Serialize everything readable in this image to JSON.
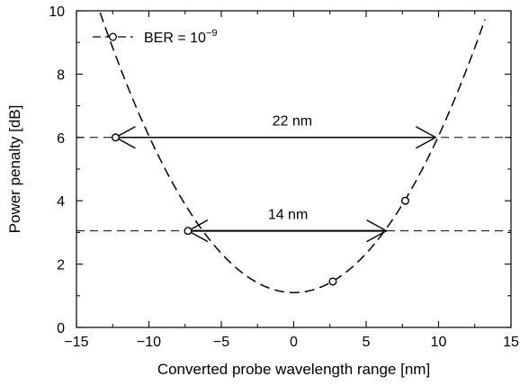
{
  "chart_data": {
    "type": "line",
    "title": "",
    "xlabel": "Converted probe wavelength range [nm]",
    "ylabel": "Power penalty [dB]",
    "xlim": [
      -15,
      15
    ],
    "ylim": [
      0,
      10
    ],
    "x_ticks": [
      -15,
      -10,
      -5,
      0,
      5,
      10,
      15
    ],
    "x_tick_labels": [
      "−15",
      "−10",
      "−5",
      "0",
      "5",
      "10",
      "15"
    ],
    "y_ticks": [
      0,
      2,
      4,
      6,
      8,
      10
    ],
    "y_tick_labels": [
      "0",
      "2",
      "4",
      "6",
      "8",
      "10"
    ],
    "grid": false,
    "legend": {
      "position": "top-left",
      "label_prefix": "BER = 10",
      "label_exponent": "−9"
    },
    "series": [
      {
        "name": "BER = 10−9",
        "style": "dashed-line-with-open-circles",
        "color": "#000000",
        "points": [
          {
            "x": -12.3,
            "y": 6.0
          },
          {
            "x": -7.3,
            "y": 3.05
          },
          {
            "x": 2.7,
            "y": 1.45
          },
          {
            "x": 7.7,
            "y": 4.0
          }
        ],
        "fit_curve": {
          "form": "quadratic",
          "vertex_x": 0.0,
          "vertex_y": 1.1,
          "coefficient": 0.0495,
          "x_range": [
            -15,
            13.2
          ]
        }
      }
    ],
    "reference_lines": [
      {
        "y": 6.0,
        "style": "dashed"
      },
      {
        "y": 3.05,
        "style": "dashed"
      }
    ],
    "annotations": [
      {
        "text": "22 nm",
        "x_from": -12.3,
        "x_to": 9.8,
        "y": 6.0,
        "label_x": -0.1,
        "label_y": 6.55
      },
      {
        "text": "14 nm",
        "x_from": -7.3,
        "x_to": 6.4,
        "y": 3.05,
        "label_x": -0.4,
        "label_y": 3.6
      }
    ]
  }
}
